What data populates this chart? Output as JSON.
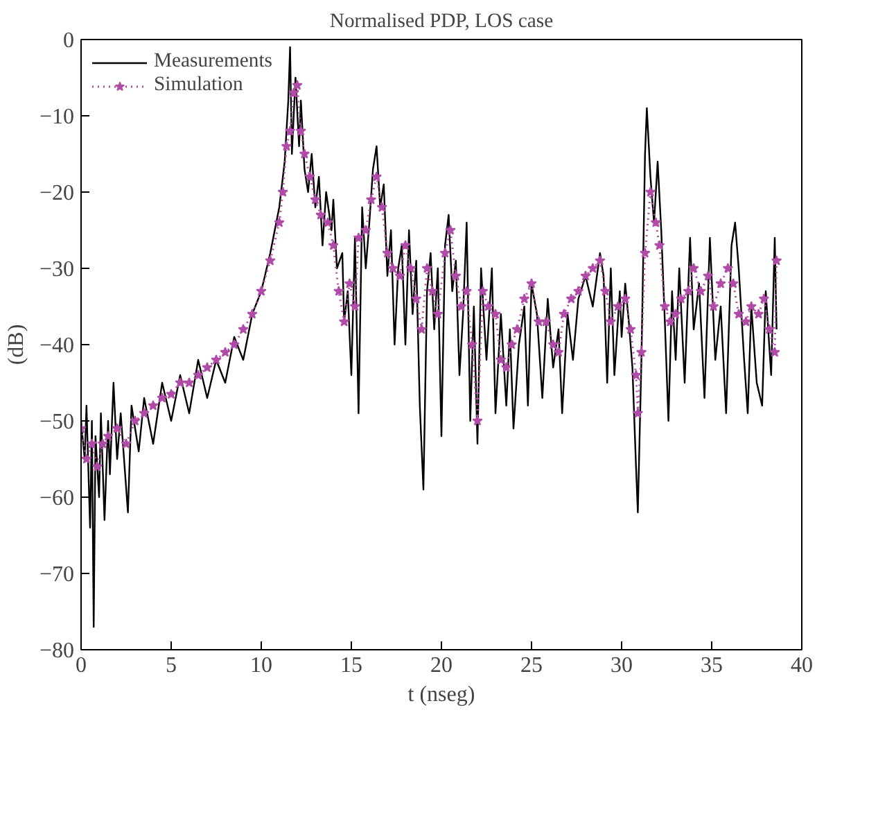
{
  "chart_data": {
    "type": "line",
    "title": "Normalised PDP, LOS case",
    "xlabel": "t (nseg)",
    "ylabel": "(dB)",
    "xlim": [
      0,
      40
    ],
    "ylim": [
      -80,
      0
    ],
    "xticks": [
      0,
      5,
      10,
      15,
      20,
      25,
      30,
      35,
      40
    ],
    "yticks": [
      {
        "value": -80,
        "label": "−80"
      },
      {
        "value": -70,
        "label": "−70"
      },
      {
        "value": -60,
        "label": "−60"
      },
      {
        "value": -50,
        "label": "−50"
      },
      {
        "value": -40,
        "label": "−40"
      },
      {
        "value": -30,
        "label": "−30"
      },
      {
        "value": -20,
        "label": "−20"
      },
      {
        "value": -10,
        "label": "−10"
      },
      0
    ],
    "grid": false,
    "legend": "top left",
    "series": [
      {
        "name": "Measurements",
        "color": "#000000",
        "line_style": "solid",
        "marker": "none",
        "x": [
          0,
          0.2,
          0.3,
          0.5,
          0.6,
          0.7,
          0.8,
          1.0,
          1.1,
          1.3,
          1.5,
          1.6,
          1.8,
          2.0,
          2.2,
          2.6,
          2.8,
          3.2,
          3.5,
          4,
          4.5,
          5,
          5.5,
          6,
          6.5,
          7,
          7.5,
          8,
          8.5,
          9,
          9.5,
          10,
          10.5,
          11,
          11.3,
          11.5,
          11.6,
          11.7,
          11.9,
          12.1,
          12.2,
          12.4,
          12.6,
          12.8,
          13,
          13.2,
          13.4,
          13.6,
          13.9,
          14,
          14.2,
          14.5,
          14.6,
          14.8,
          15,
          15.2,
          15.4,
          15.6,
          15.8,
          16,
          16.2,
          16.4,
          16.6,
          16.8,
          17.0,
          17.2,
          17.4,
          17.6,
          17.8,
          18,
          18.2,
          18.4,
          18.6,
          18.8,
          19,
          19.2,
          19.4,
          19.6,
          19.8,
          20,
          20.2,
          20.4,
          20.6,
          20.8,
          21,
          21.2,
          21.4,
          21.6,
          21.8,
          22,
          22.2,
          22.5,
          22.8,
          23,
          23.3,
          23.6,
          23.8,
          24,
          24.3,
          24.6,
          24.8,
          25,
          25.3,
          25.6,
          25.9,
          26.2,
          26.5,
          26.7,
          27,
          27.3,
          27.6,
          28,
          28.4,
          28.8,
          29,
          29.2,
          29.4,
          29.6,
          29.9,
          30,
          30.2,
          30.4,
          30.6,
          30.8,
          30.9,
          31.1,
          31.3,
          31.4,
          31.6,
          31.8,
          32,
          32.2,
          32.4,
          32.6,
          32.8,
          33,
          33.2,
          33.5,
          33.8,
          34,
          34.3,
          34.6,
          34.9,
          35.2,
          35.5,
          35.8,
          36.1,
          36.3,
          36.5,
          36.8,
          37,
          37.2,
          37.5,
          37.8,
          38,
          38.3,
          38.5,
          38.6
        ],
        "values": [
          -50,
          -55,
          -48,
          -64,
          -50,
          -77,
          -52,
          -60,
          -49,
          -63,
          -50,
          -57,
          -45,
          -55,
          -49,
          -62,
          -48,
          -54,
          -47,
          -53,
          -45,
          -50,
          -44,
          -49,
          -42,
          -47,
          -42,
          -45,
          -39,
          -42,
          -36,
          -33,
          -28,
          -22,
          -16,
          -8,
          -1,
          -15,
          -5,
          -14,
          -8,
          -17,
          -20,
          -15,
          -22,
          -18,
          -27,
          -20,
          -25,
          -21,
          -30,
          -28,
          -37,
          -33,
          -44,
          -26,
          -49,
          -22,
          -30,
          -24,
          -17,
          -14,
          -22,
          -19,
          -31,
          -25,
          -40,
          -30,
          -27,
          -40,
          -25,
          -36,
          -29,
          -48,
          -59,
          -33,
          -28,
          -38,
          -30,
          -52,
          -27,
          -23,
          -33,
          -29,
          -44,
          -36,
          -24,
          -50,
          -35,
          -53,
          -30,
          -42,
          -30,
          -49,
          -36,
          -48,
          -38,
          -51,
          -40,
          -35,
          -48,
          -32,
          -36,
          -47,
          -34,
          -43,
          -38,
          -49,
          -36,
          -42,
          -34,
          -31,
          -35,
          -28,
          -31,
          -45,
          -30,
          -44,
          -33,
          -39,
          -32,
          -37,
          -43,
          -56,
          -62,
          -42,
          -15,
          -9,
          -18,
          -24,
          -16,
          -25,
          -37,
          -50,
          -33,
          -42,
          -30,
          -45,
          -26,
          -38,
          -32,
          -47,
          -26,
          -42,
          -35,
          -49,
          -27,
          -24,
          -30,
          -42,
          -49,
          -35,
          -45,
          -48,
          -33,
          -44,
          -26,
          -38
        ]
      },
      {
        "name": "Simulation",
        "color": "#b04ca8",
        "line_style": "dotted",
        "marker": "star",
        "x": [
          0,
          0.3,
          0.6,
          0.9,
          1.2,
          1.5,
          2,
          2.5,
          3,
          3.5,
          4,
          4.5,
          5,
          5.5,
          6,
          6.5,
          7,
          7.5,
          8,
          8.5,
          9,
          9.5,
          10,
          10.5,
          11,
          11.2,
          11.4,
          11.6,
          11.8,
          12,
          12.2,
          12.4,
          12.7,
          13,
          13.3,
          13.7,
          14,
          14.3,
          14.6,
          14.9,
          15.2,
          15.4,
          15.8,
          16.1,
          16.4,
          16.7,
          17,
          17.3,
          17.7,
          18,
          18.3,
          18.6,
          18.9,
          19.2,
          19.5,
          19.8,
          20.2,
          20.5,
          20.8,
          21.1,
          21.4,
          21.7,
          22,
          22.3,
          22.6,
          23,
          23.3,
          23.6,
          23.9,
          24.2,
          24.6,
          25,
          25.4,
          25.8,
          26.2,
          26.5,
          26.8,
          27.2,
          27.6,
          28,
          28.4,
          28.8,
          29.1,
          29.4,
          29.8,
          30.2,
          30.5,
          30.8,
          30.9,
          31.1,
          31.3,
          31.6,
          31.9,
          32.1,
          32.4,
          32.7,
          33,
          33.3,
          33.7,
          34,
          34.4,
          34.8,
          35.1,
          35.5,
          35.9,
          36.2,
          36.5,
          36.9,
          37.2,
          37.6,
          37.9,
          38.2,
          38.5,
          38.6
        ],
        "values": [
          -51,
          -55,
          -53,
          -56,
          -53,
          -52,
          -51,
          -53,
          -50,
          -49,
          -48,
          -47,
          -46.5,
          -45,
          -45,
          -44,
          -43,
          -42,
          -41,
          -40,
          -38,
          -36,
          -33,
          -29,
          -24,
          -20,
          -14,
          -12,
          -7,
          -6,
          -12,
          -15,
          -18,
          -21,
          -23,
          -24,
          -27,
          -33,
          -37,
          -32,
          -35,
          -26,
          -25,
          -21,
          -18,
          -22,
          -28,
          -30,
          -31,
          -27,
          -30,
          -34,
          -38,
          -30,
          -33,
          -36,
          -28,
          -25,
          -31,
          -35,
          -33,
          -40,
          -50,
          -33,
          -35,
          -36,
          -42,
          -43,
          -40,
          -38,
          -34,
          -32,
          -37,
          -37,
          -40,
          -41,
          -36,
          -34,
          -33,
          -31,
          -30,
          -29,
          -33,
          -37,
          -35,
          -34,
          -38,
          -44,
          -49,
          -41,
          -28,
          -20,
          -24,
          -27,
          -35,
          -37,
          -36,
          -34,
          -33,
          -30,
          -33,
          -31,
          -35,
          -32,
          -30,
          -32,
          -36,
          -37,
          -35,
          -36,
          -34,
          -38,
          -41,
          -29
        ]
      }
    ]
  }
}
